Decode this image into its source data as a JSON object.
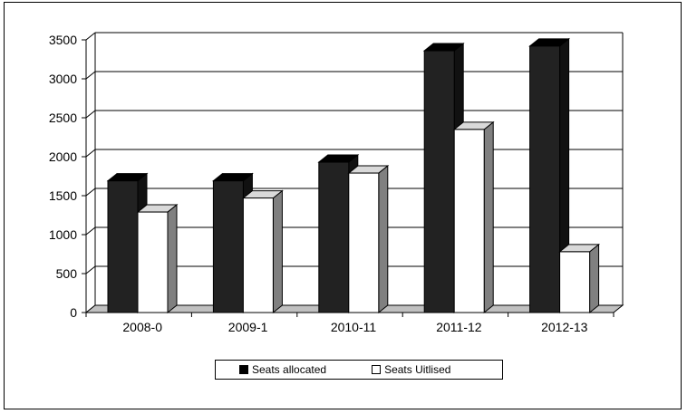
{
  "chart_data": {
    "type": "bar",
    "categories": [
      "2008-0",
      "2009-1",
      "2010-11",
      "2011-12",
      "2012-13"
    ],
    "series": [
      {
        "name": "Seats allocated",
        "values": [
          1690,
          1690,
          1930,
          3360,
          3420
        ]
      },
      {
        "name": "Seats Uitlised",
        "values": [
          1290,
          1470,
          1790,
          2350,
          780
        ]
      }
    ],
    "ylim": [
      0,
      3500
    ],
    "yticks": [
      0,
      500,
      1000,
      1500,
      2000,
      2500,
      3000,
      3500
    ],
    "grid": true,
    "three_d": true,
    "legend": "bottom",
    "colors": {
      "series_1_front": "#222222",
      "series_1_side": "#111111",
      "series_2_front": "#ffffff",
      "series_2_side": "#808080",
      "floor": "#c0c0c0"
    },
    "title": "",
    "xlabel": "",
    "ylabel": ""
  }
}
